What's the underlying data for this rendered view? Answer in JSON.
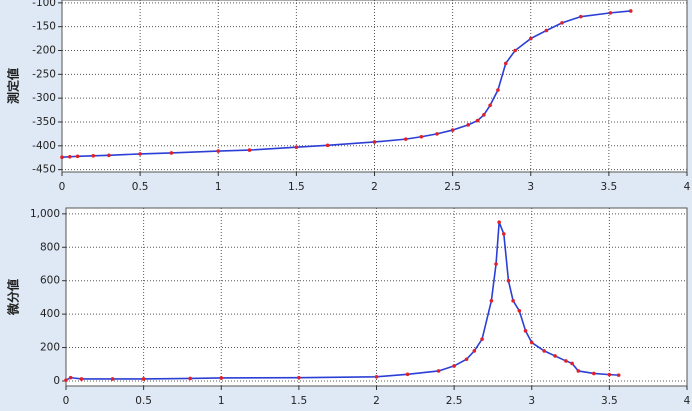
{
  "chart_data": [
    {
      "type": "line",
      "y_label": "測定値",
      "x": [
        0,
        0.05,
        0.1,
        0.2,
        0.3,
        0.5,
        0.7,
        1,
        1.2,
        1.5,
        1.7,
        2,
        2.2,
        2.3,
        2.4,
        2.5,
        2.6,
        2.66,
        2.7,
        2.74,
        2.79,
        2.84,
        2.9,
        3,
        3.1,
        3.2,
        3.32,
        3.51,
        3.64
      ],
      "series": [
        {
          "color": "#2b3fd6",
          "marker_color": "#e0202a",
          "values": [
            -424,
            -423,
            -422,
            -421,
            -420,
            -417,
            -415,
            -411,
            -409,
            -403,
            -399,
            -392,
            -386,
            -381,
            -375,
            -367,
            -356,
            -347,
            -335,
            -315,
            -283,
            -227,
            -200,
            -175,
            -158,
            -142,
            -129,
            -121,
            -117
          ]
        }
      ],
      "xlim": [
        0,
        4
      ],
      "xticks": [
        0,
        0.5,
        1,
        1.5,
        2,
        2.5,
        3,
        3.5,
        4
      ],
      "ylim": [
        -455,
        -94
      ],
      "yticks": [
        -450,
        -400,
        -350,
        -300,
        -250,
        -200,
        -150,
        -100
      ],
      "grid": true
    },
    {
      "type": "line",
      "y_label": "微分値",
      "x": [
        0,
        0.03,
        0.1,
        0.3,
        0.5,
        0.8,
        1,
        1.5,
        2,
        2.2,
        2.4,
        2.5,
        2.58,
        2.63,
        2.68,
        2.74,
        2.77,
        2.79,
        2.82,
        2.85,
        2.88,
        2.92,
        2.96,
        3,
        3.08,
        3.15,
        3.22,
        3.26,
        3.3,
        3.4,
        3.5,
        3.56
      ],
      "series": [
        {
          "color": "#2b3fd6",
          "marker_color": "#e0202a",
          "values": [
            5,
            20,
            12,
            12,
            12,
            15,
            18,
            20,
            25,
            40,
            60,
            90,
            130,
            180,
            250,
            480,
            700,
            950,
            880,
            600,
            480,
            420,
            300,
            230,
            180,
            150,
            120,
            105,
            60,
            45,
            38,
            35
          ]
        }
      ],
      "xlim": [
        0,
        4
      ],
      "xticks": [
        0,
        0.5,
        1,
        1.5,
        2,
        2.5,
        3,
        3.5,
        4
      ],
      "ylim": [
        -30,
        1035
      ],
      "yticks": [
        0,
        200,
        400,
        600,
        800,
        {
          "value": 1000,
          "label": "1,000"
        }
      ],
      "grid": true
    }
  ]
}
